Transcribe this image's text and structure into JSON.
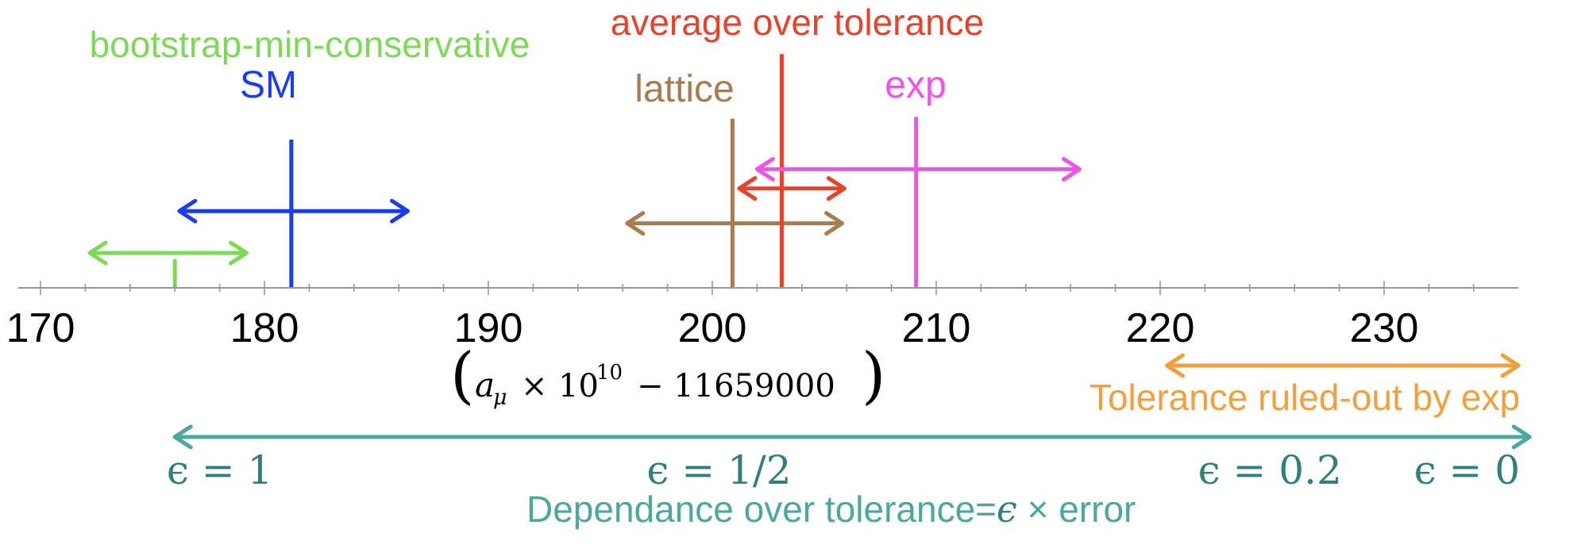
{
  "chart_data": {
    "type": "scatter",
    "title": "",
    "xlabel": {
      "open": "(",
      "a": "a",
      "mu": "μ",
      "times": "×",
      "ten": "10",
      "exp": "10",
      "rest": "− 11659000",
      "close": ")"
    },
    "xlim": [
      169,
      236
    ],
    "x_ticks": [
      170,
      180,
      190,
      200,
      210,
      220,
      230
    ],
    "tick_labels": [
      "170",
      "180",
      "190",
      "200",
      "210",
      "220",
      "230"
    ],
    "minor_tick_step": 2,
    "series": [
      {
        "name": "bootstrap-min-conservative",
        "label": "bootstrap-min-conservative",
        "color": "#7ed957",
        "center": 176.0,
        "low": 172.2,
        "high": 179.2,
        "level": 1.0,
        "line_height": 0.82
      },
      {
        "name": "SM",
        "label": "SM",
        "color": "#1a3cf0",
        "center": 181.2,
        "low": 176.2,
        "high": 186.4,
        "level": 2.2,
        "line_height": 4.25
      },
      {
        "name": "lattice",
        "label": "lattice",
        "color": "#a87c4f",
        "center": 200.9,
        "low": 196.2,
        "high": 205.8,
        "level": 1.85,
        "line_height": 4.85
      },
      {
        "name": "average over tolerance",
        "label": "average over tolerance",
        "color": "#e8412c",
        "center": 203.1,
        "low": 201.2,
        "high": 205.9,
        "level": 2.85,
        "line_height": 6.7
      },
      {
        "name": "exp",
        "label": "exp",
        "color": "#f052ea",
        "center": 209.1,
        "low": 202.0,
        "high": 216.4,
        "level": 3.4,
        "line_height": 4.9
      }
    ],
    "tolerance_ruled_out": {
      "label": "Tolerance ruled-out by exp",
      "color": "#f0a03c",
      "low": 220.3,
      "high": 236.0
    },
    "tolerance_scale": {
      "label_prefix": "Dependance over tolerance=",
      "label_eps": "ϵ",
      "label_suffix": " × error",
      "color": "#4aa89c",
      "label_color": "#2f7f7a",
      "low": 176.0,
      "high": 236.5,
      "eps_labels": [
        {
          "text": "ϵ = 1",
          "x": 178.0
        },
        {
          "text": "ϵ = 1/2",
          "x": 200.3
        },
        {
          "text": "ϵ = 0.2",
          "x": 224.9
        },
        {
          "text": "ϵ = 0",
          "x": 233.7
        }
      ]
    }
  }
}
